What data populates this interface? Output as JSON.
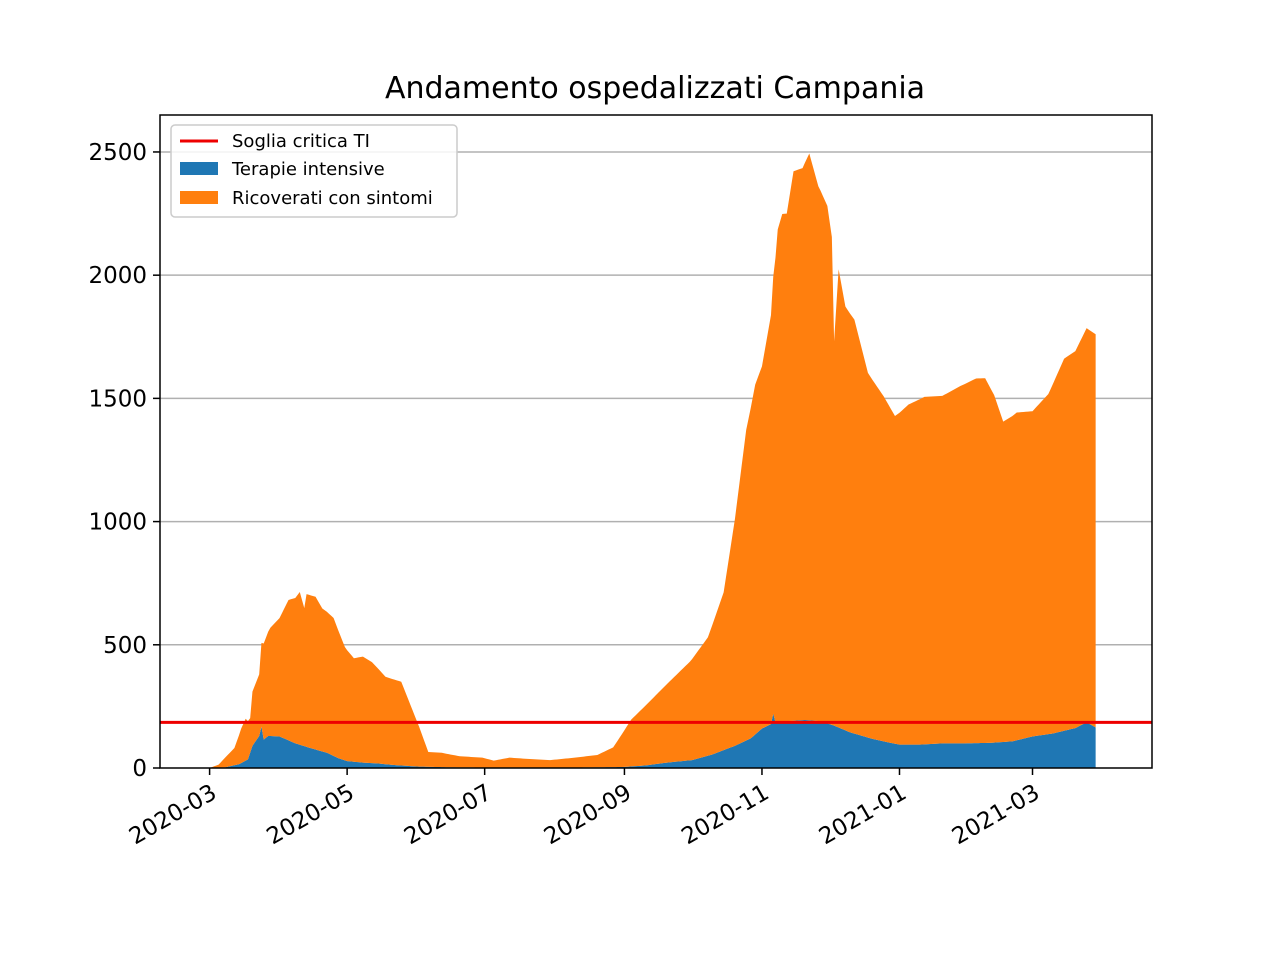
{
  "chart_data": {
    "type": "area",
    "title": "Andamento ospedalizzati Campania",
    "xlabel": "",
    "ylabel": "",
    "xlim": [
      "2020-02-08",
      "2021-04-23"
    ],
    "ylim": [
      0,
      2650
    ],
    "x_ticks": [
      "2020-03",
      "2020-05",
      "2020-07",
      "2020-09",
      "2020-11",
      "2021-01",
      "2021-03"
    ],
    "x_tick_dates": [
      "2020-03-01",
      "2020-05-01",
      "2020-07-01",
      "2020-09-01",
      "2020-11-01",
      "2021-01-01",
      "2021-03-01"
    ],
    "y_ticks": [
      0,
      500,
      1000,
      1500,
      2000,
      2500
    ],
    "grid": "horizontal",
    "legend_position": "upper-left",
    "threshold": {
      "name": "Soglia critica TI",
      "value": 185,
      "color": "#ee0000"
    },
    "stack_order": [
      "Terapie intensive",
      "Ricoverati con sintomi"
    ],
    "series": [
      {
        "name": "Terapie intensive",
        "color": "#1f77b4",
        "points": [
          [
            "2020-03-01",
            0
          ],
          [
            "2020-03-08",
            3
          ],
          [
            "2020-03-14",
            15
          ],
          [
            "2020-03-18",
            35
          ],
          [
            "2020-03-20",
            90
          ],
          [
            "2020-03-23",
            130
          ],
          [
            "2020-03-24",
            168
          ],
          [
            "2020-03-25",
            115
          ],
          [
            "2020-03-27",
            130
          ],
          [
            "2020-04-01",
            128
          ],
          [
            "2020-04-08",
            100
          ],
          [
            "2020-04-15",
            80
          ],
          [
            "2020-04-22",
            62
          ],
          [
            "2020-04-27",
            40
          ],
          [
            "2020-05-01",
            28
          ],
          [
            "2020-05-08",
            22
          ],
          [
            "2020-05-15",
            18
          ],
          [
            "2020-05-22",
            12
          ],
          [
            "2020-06-01",
            6
          ],
          [
            "2020-06-15",
            3
          ],
          [
            "2020-07-01",
            2
          ],
          [
            "2020-07-20",
            2
          ],
          [
            "2020-08-10",
            2
          ],
          [
            "2020-08-31",
            4
          ],
          [
            "2020-09-10",
            10
          ],
          [
            "2020-09-20",
            22
          ],
          [
            "2020-10-01",
            32
          ],
          [
            "2020-10-10",
            55
          ],
          [
            "2020-10-20",
            90
          ],
          [
            "2020-10-27",
            120
          ],
          [
            "2020-11-01",
            160
          ],
          [
            "2020-11-05",
            178
          ],
          [
            "2020-11-06",
            220
          ],
          [
            "2020-11-07",
            185
          ],
          [
            "2020-11-12",
            190
          ],
          [
            "2020-11-20",
            195
          ],
          [
            "2020-11-27",
            190
          ],
          [
            "2020-12-03",
            172
          ],
          [
            "2020-12-10",
            145
          ],
          [
            "2020-12-20",
            118
          ],
          [
            "2020-12-28",
            102
          ],
          [
            "2021-01-01",
            95
          ],
          [
            "2021-01-10",
            95
          ],
          [
            "2021-01-20",
            100
          ],
          [
            "2021-01-30",
            100
          ],
          [
            "2021-02-10",
            102
          ],
          [
            "2021-02-20",
            108
          ],
          [
            "2021-03-01",
            128
          ],
          [
            "2021-03-10",
            140
          ],
          [
            "2021-03-20",
            162
          ],
          [
            "2021-03-25",
            185
          ],
          [
            "2021-03-29",
            165
          ]
        ]
      },
      {
        "name": "Ricoverati con sintomi",
        "color": "#ff7f0e",
        "points": [
          [
            "2020-03-01",
            0
          ],
          [
            "2020-03-05",
            12
          ],
          [
            "2020-03-08",
            40
          ],
          [
            "2020-03-12",
            70
          ],
          [
            "2020-03-15",
            140
          ],
          [
            "2020-03-17",
            170
          ],
          [
            "2020-03-19",
            140
          ],
          [
            "2020-03-20",
            220
          ],
          [
            "2020-03-23",
            250
          ],
          [
            "2020-03-24",
            340
          ],
          [
            "2020-03-25",
            390
          ],
          [
            "2020-03-28",
            440
          ],
          [
            "2020-04-01",
            480
          ],
          [
            "2020-04-05",
            570
          ],
          [
            "2020-04-08",
            590
          ],
          [
            "2020-04-10",
            620
          ],
          [
            "2020-04-12",
            560
          ],
          [
            "2020-04-13",
            620
          ],
          [
            "2020-04-17",
            620
          ],
          [
            "2020-04-20",
            580
          ],
          [
            "2020-04-25",
            560
          ],
          [
            "2020-04-30",
            460
          ],
          [
            "2020-05-04",
            420
          ],
          [
            "2020-05-08",
            430
          ],
          [
            "2020-05-12",
            410
          ],
          [
            "2020-05-18",
            355
          ],
          [
            "2020-05-25",
            340
          ],
          [
            "2020-05-29",
            250
          ],
          [
            "2020-06-02",
            160
          ],
          [
            "2020-06-06",
            60
          ],
          [
            "2020-06-12",
            58
          ],
          [
            "2020-06-20",
            45
          ],
          [
            "2020-06-30",
            40
          ],
          [
            "2020-07-05",
            28
          ],
          [
            "2020-07-12",
            40
          ],
          [
            "2020-07-20",
            35
          ],
          [
            "2020-07-30",
            30
          ],
          [
            "2020-08-10",
            40
          ],
          [
            "2020-08-20",
            50
          ],
          [
            "2020-08-27",
            80
          ],
          [
            "2020-08-31",
            135
          ],
          [
            "2020-09-04",
            190
          ],
          [
            "2020-09-10",
            240
          ],
          [
            "2020-09-20",
            320
          ],
          [
            "2020-09-30",
            400
          ],
          [
            "2020-10-08",
            480
          ],
          [
            "2020-10-15",
            640
          ],
          [
            "2020-10-20",
            920
          ],
          [
            "2020-10-25",
            1260
          ],
          [
            "2020-10-29",
            1420
          ],
          [
            "2020-11-01",
            1470
          ],
          [
            "2020-11-05",
            1660
          ],
          [
            "2020-11-08",
            2000
          ],
          [
            "2020-11-10",
            2060
          ],
          [
            "2020-11-12",
            2060
          ],
          [
            "2020-11-15",
            2230
          ],
          [
            "2020-11-19",
            2240
          ],
          [
            "2020-11-22",
            2300
          ],
          [
            "2020-11-26",
            2170
          ],
          [
            "2020-11-30",
            2100
          ],
          [
            "2020-12-02",
            1980
          ],
          [
            "2020-12-03",
            1560
          ],
          [
            "2020-12-05",
            1860
          ],
          [
            "2020-12-08",
            1720
          ],
          [
            "2020-12-12",
            1680
          ],
          [
            "2020-12-18",
            1480
          ],
          [
            "2020-12-25",
            1400
          ],
          [
            "2020-12-30",
            1330
          ],
          [
            "2021-01-05",
            1380
          ],
          [
            "2021-01-12",
            1410
          ],
          [
            "2021-01-20",
            1410
          ],
          [
            "2021-01-28",
            1450
          ],
          [
            "2021-02-04",
            1480
          ],
          [
            "2021-02-08",
            1480
          ],
          [
            "2021-02-12",
            1410
          ],
          [
            "2021-02-16",
            1300
          ],
          [
            "2021-02-22",
            1330
          ],
          [
            "2021-03-01",
            1320
          ],
          [
            "2021-03-08",
            1380
          ],
          [
            "2021-03-15",
            1510
          ],
          [
            "2021-03-20",
            1530
          ],
          [
            "2021-03-25",
            1600
          ],
          [
            "2021-03-29",
            1595
          ]
        ]
      }
    ]
  }
}
